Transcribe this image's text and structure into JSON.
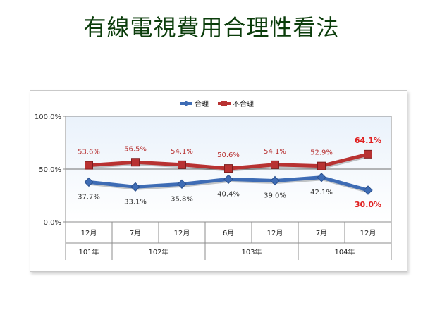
{
  "page": {
    "title": "有線電視費用合理性看法"
  },
  "colors": {
    "title": "#0b3d0b",
    "series_reasonable": "#3e6cb5",
    "series_unreasonable": "#b83232",
    "highlight_label": "#e02020",
    "plot_background_top": "#eaf2fb",
    "plot_background_bottom": "#ffffff"
  },
  "chart_data": {
    "type": "line",
    "title": "",
    "xlabel": "",
    "ylabel": "",
    "ylim": [
      0,
      100
    ],
    "y_ticks": [
      "0.0%",
      "50.0%",
      "100.0%"
    ],
    "grid": true,
    "legend_position": "top-center",
    "categories": [
      "12月",
      "7月",
      "12月",
      "6月",
      "12月",
      "7月",
      "12月"
    ],
    "year_groups": [
      {
        "label": "101年",
        "span": 1
      },
      {
        "label": "102年",
        "span": 2
      },
      {
        "label": "103年",
        "span": 2
      },
      {
        "label": "104年",
        "span": 2
      }
    ],
    "series": [
      {
        "name": "合理",
        "marker": "diamond",
        "values": [
          37.7,
          33.1,
          35.8,
          40.4,
          39.0,
          42.1,
          30.0
        ],
        "labels": [
          "37.7%",
          "33.1%",
          "35.8%",
          "40.4%",
          "39.0%",
          "42.1%",
          "30.0%"
        ],
        "label_position": "below"
      },
      {
        "name": "不合理",
        "marker": "square",
        "values": [
          53.6,
          56.5,
          54.1,
          50.6,
          54.1,
          52.9,
          64.1
        ],
        "labels": [
          "53.6%",
          "56.5%",
          "54.1%",
          "50.6%",
          "54.1%",
          "52.9%",
          "64.1%"
        ],
        "label_position": "above"
      }
    ],
    "highlighted_labels": [
      6
    ]
  }
}
